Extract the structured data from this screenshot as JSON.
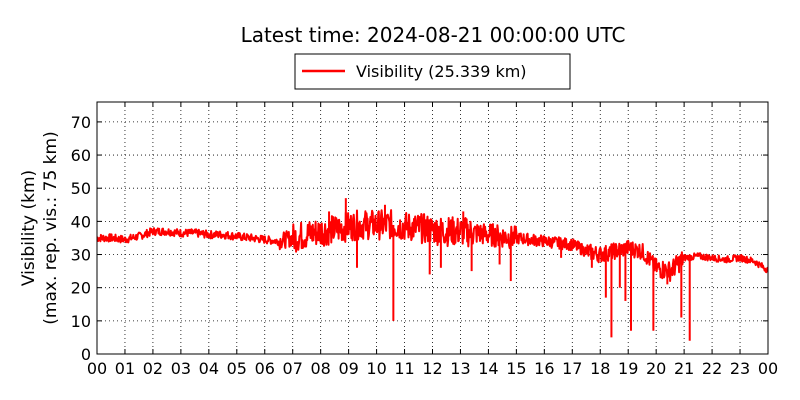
{
  "chart_data": {
    "type": "line",
    "title": "Latest time: 2024-08-21 00:00:00 UTC",
    "ylabel_line1": "Visibility (km)",
    "ylabel_line2": "(max. rep. vis.: 75 km)",
    "xlim": [
      0,
      24
    ],
    "ylim": [
      0,
      76
    ],
    "x_ticks": [
      0,
      1,
      2,
      3,
      4,
      5,
      6,
      7,
      8,
      9,
      10,
      11,
      12,
      13,
      14,
      15,
      16,
      17,
      18,
      19,
      20,
      21,
      22,
      23,
      24
    ],
    "x_tick_labels": [
      "00",
      "01",
      "02",
      "03",
      "04",
      "05",
      "06",
      "07",
      "08",
      "09",
      "10",
      "11",
      "12",
      "13",
      "14",
      "15",
      "16",
      "17",
      "18",
      "19",
      "20",
      "21",
      "22",
      "23",
      "00"
    ],
    "y_ticks": [
      0,
      10,
      20,
      30,
      40,
      50,
      60,
      70
    ],
    "y_tick_labels": [
      "0",
      "10",
      "20",
      "30",
      "40",
      "50",
      "60",
      "70"
    ],
    "grid": true,
    "legend_position": "top-center",
    "series": [
      {
        "name": "Visibility (25.339 km)",
        "color": "#ff0000",
        "x": [
          0,
          0.5,
          1,
          1.5,
          2,
          2.5,
          3,
          3.5,
          4,
          4.5,
          5,
          5.5,
          6,
          6.5,
          7,
          7.5,
          8,
          8.5,
          9,
          9.5,
          10,
          10.5,
          11,
          11.5,
          12,
          12.5,
          13,
          13.5,
          14,
          14.5,
          15,
          15.5,
          16,
          16.5,
          17,
          17.5,
          18,
          18.5,
          19,
          19.5,
          20,
          20.5,
          21,
          21.5,
          22,
          22.5,
          23,
          23.5,
          24
        ],
        "y": [
          35,
          35,
          34.5,
          35.5,
          37,
          37,
          36.5,
          36.5,
          36,
          36,
          35.5,
          35,
          34.5,
          34,
          35,
          36,
          37,
          37.5,
          38.5,
          39,
          39,
          39,
          38.5,
          38,
          37.5,
          37,
          37,
          36.5,
          36,
          35.5,
          35,
          34.5,
          34,
          33.5,
          33,
          31,
          30,
          31,
          32,
          31,
          26,
          25,
          29,
          29.5,
          29,
          28.5,
          29,
          28,
          25.3
        ]
      }
    ],
    "spikes": [
      {
        "x": 8.9,
        "y": 47
      },
      {
        "x": 8.3,
        "y": 43
      },
      {
        "x": 9.3,
        "y": 26
      },
      {
        "x": 10.6,
        "y": 10
      },
      {
        "x": 10.3,
        "y": 45
      },
      {
        "x": 11.9,
        "y": 24
      },
      {
        "x": 12.3,
        "y": 26
      },
      {
        "x": 13.4,
        "y": 25
      },
      {
        "x": 13.1,
        "y": 43
      },
      {
        "x": 14.4,
        "y": 27
      },
      {
        "x": 14.8,
        "y": 22
      },
      {
        "x": 16.6,
        "y": 29
      },
      {
        "x": 17.7,
        "y": 26
      },
      {
        "x": 18.2,
        "y": 17
      },
      {
        "x": 18.4,
        "y": 5
      },
      {
        "x": 18.7,
        "y": 20
      },
      {
        "x": 18.9,
        "y": 16
      },
      {
        "x": 19.1,
        "y": 7
      },
      {
        "x": 19.9,
        "y": 7
      },
      {
        "x": 20.4,
        "y": 21
      },
      {
        "x": 20.9,
        "y": 11
      },
      {
        "x": 21.2,
        "y": 4
      }
    ]
  }
}
